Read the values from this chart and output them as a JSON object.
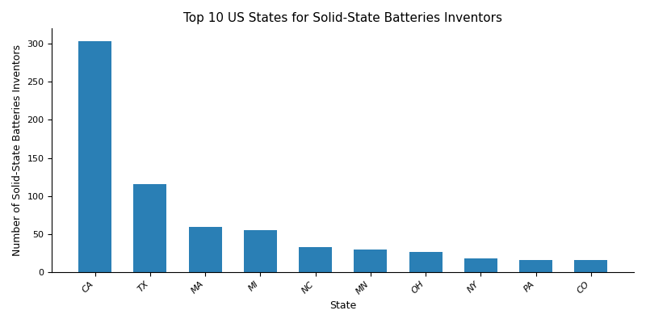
{
  "title": "Top 10 US States for Solid-State Batteries Inventors",
  "xlabel": "State",
  "ylabel": "Number of Solid-State Batteries Inventors",
  "categories": [
    "CA",
    "TX",
    "MA",
    "MI",
    "NC",
    "MN",
    "OH",
    "NY",
    "PA",
    "CO"
  ],
  "values": [
    303,
    116,
    59,
    55,
    33,
    30,
    26,
    18,
    16,
    16
  ],
  "bar_color": "#2a7fb5",
  "ylim": [
    0,
    320
  ],
  "yticks": [
    0,
    50,
    100,
    150,
    200,
    250,
    300
  ],
  "figsize": [
    8.0,
    4.0
  ],
  "dpi": 100,
  "bar_width": 0.6,
  "title_fontsize": 11,
  "label_fontsize": 9,
  "tick_fontsize": 8
}
